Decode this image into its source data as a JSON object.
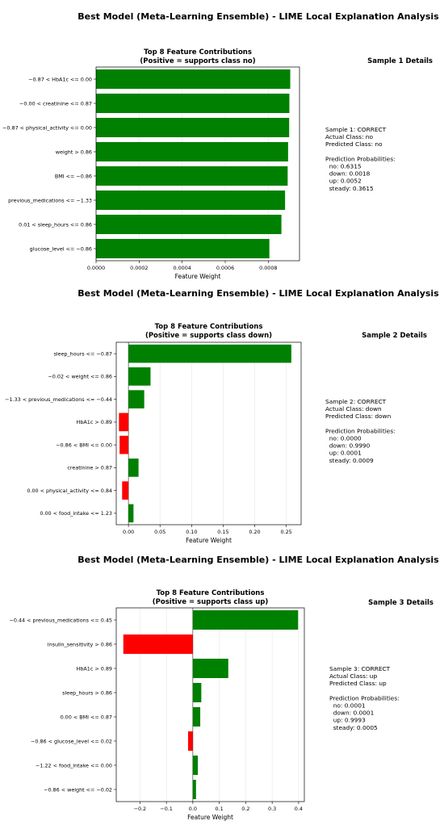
{
  "panels": [
    {
      "figure_title": "Best Model (Meta-Learning Ensemble) - LIME Local Explanation Analysis",
      "details_title": "Sample 1 Details",
      "details_lines": [
        "Sample 1: CORRECT",
        "Actual Class: no",
        "Predicted Class: no",
        "",
        "Prediction Probabilities:",
        "  no: 0.6315",
        "  down: 0.0018",
        "  up: 0.0052",
        "  steady: 0.3615"
      ],
      "chart_data": {
        "type": "bar",
        "orientation": "horizontal",
        "title": "Top 8 Feature Contributions",
        "subtitle": "(Positive = supports class no)",
        "xlabel": "Feature Weight",
        "xlim": [
          0,
          0.000945
        ],
        "xticks": [
          0,
          0.0002,
          0.0004,
          0.0006,
          0.0008
        ],
        "xtick_labels": [
          "0.0000",
          "0.0002",
          "0.0004",
          "0.0006",
          "0.0008"
        ],
        "grid": true,
        "categories": [
          "−0.87 < HbA1c <= 0.00",
          "−0.00 < creatinine <= 0.87",
          "−0.87 < physical_activity <= 0.00",
          "weight > 0.86",
          "BMI <= −0.86",
          "previous_medications <= −1.33",
          "0.01 < sleep_hours <= 0.86",
          "glucose_level <= −0.86"
        ],
        "values": [
          0.000902,
          0.000898,
          0.000897,
          0.000892,
          0.00089,
          0.000878,
          0.000861,
          0.000805
        ],
        "colors": {
          "positive": "#008000",
          "negative": "#ff0000"
        }
      }
    },
    {
      "figure_title": "Best Model (Meta-Learning Ensemble) - LIME Local Explanation Analysis",
      "details_title": "Sample 2 Details",
      "details_lines": [
        "Sample 2: CORRECT",
        "Actual Class: down",
        "Predicted Class: down",
        "",
        "Prediction Probabilities:",
        "  no: 0.0000",
        "  down: 0.9990",
        "  up: 0.0001",
        "  steady: 0.0009"
      ],
      "chart_data": {
        "type": "bar",
        "orientation": "horizontal",
        "title": "Top 8 Feature Contributions",
        "subtitle": "(Positive = supports class down)",
        "xlabel": "Feature Weight",
        "xlim": [
          -0.0193,
          0.2735
        ],
        "xticks": [
          0,
          0.05,
          0.1,
          0.15,
          0.2,
          0.25
        ],
        "xtick_labels": [
          "0.00",
          "0.05",
          "0.10",
          "0.15",
          "0.20",
          "0.25"
        ],
        "grid": true,
        "categories": [
          "sleep_hours <= −0.87",
          "−0.02 < weight <= 0.86",
          "−1.33 < previous_medications <= −0.44",
          "HbA1c > 0.89",
          "−0.86 < BMI <= 0.00",
          "creatinine > 0.87",
          "0.00 < physical_activity <= 0.84",
          "0.00 < food_intake <= 1.23"
        ],
        "values": [
          0.258,
          0.035,
          0.025,
          -0.015,
          -0.014,
          0.016,
          -0.01,
          0.008
        ],
        "colors": {
          "positive": "#008000",
          "negative": "#ff0000"
        }
      }
    },
    {
      "figure_title": "Best Model (Meta-Learning Ensemble) - LIME Local Explanation Analysis",
      "details_title": "Sample 3 Details",
      "details_lines": [
        "Sample 3: CORRECT",
        "Actual Class: up",
        "Predicted Class: up",
        "",
        "Prediction Probabilities:",
        "  no: 0.0001",
        "  down: 0.0001",
        "  up: 0.9993",
        "  steady: 0.0005"
      ],
      "chart_data": {
        "type": "bar",
        "orientation": "horizontal",
        "title": "Top 8 Feature Contributions",
        "subtitle": "(Positive = supports class up)",
        "xlabel": "Feature Weight",
        "xlim": [
          -0.2897,
          0.4217
        ],
        "xticks": [
          -0.2,
          -0.1,
          0,
          0.1,
          0.2,
          0.3,
          0.4
        ],
        "xtick_labels": [
          "−0.2",
          "−0.1",
          "0.0",
          "0.1",
          "0.2",
          "0.3",
          "0.4"
        ],
        "grid": true,
        "categories": [
          "−0.44 < previous_medications <= 0.45",
          "insulin_sensitivity > 0.86",
          "HbA1c > 0.89",
          "sleep_hours > 0.86",
          "0.00 < BMI <= 0.87",
          "−0.86 < glucose_level <= 0.02",
          "−1.22 < food_intake <= 0.00",
          "−0.86 < weight <= −0.02"
        ],
        "values": [
          0.398,
          -0.263,
          0.134,
          0.032,
          0.028,
          -0.018,
          0.019,
          0.012
        ],
        "colors": {
          "positive": "#008000",
          "negative": "#ff0000"
        }
      }
    }
  ]
}
